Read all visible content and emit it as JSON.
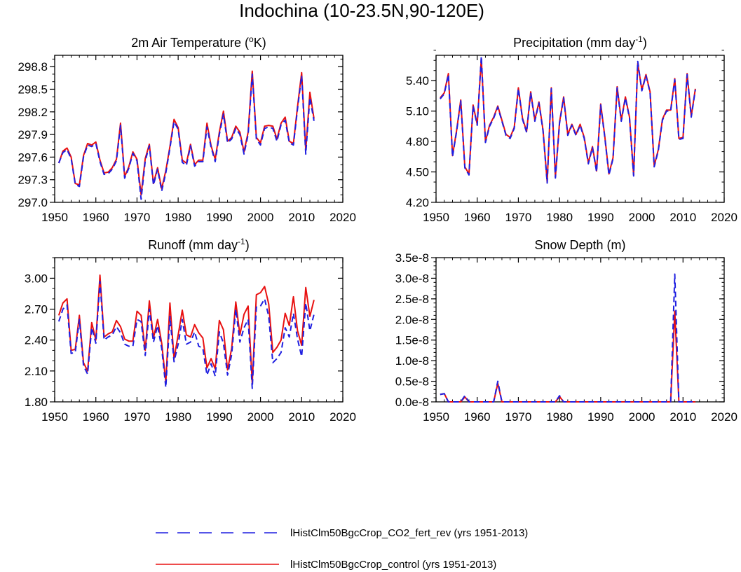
{
  "figure": {
    "title": "Indochina (10-23.5N,90-120E)"
  },
  "colors": {
    "rev": "#1f1fe0",
    "control": "#e81010",
    "axis": "#000000"
  },
  "legend": {
    "items": [
      {
        "label": "lHistClm50BgcCrop_CO2_fert_rev (yrs 1951-2013)",
        "style": "dashed",
        "color": "#1f1fe0"
      },
      {
        "label": "lHistClm50BgcCrop_control (yrs 1951-2013)",
        "style": "solid",
        "color": "#e81010"
      }
    ]
  },
  "chart_data": [
    {
      "type": "line",
      "title": "2m Air Temperature (°K)",
      "title_parts": {
        "pre": "2m Air Temperature (",
        "sup": "o",
        "post": "K)"
      },
      "xlim": [
        1950,
        2020
      ],
      "xticks": [
        1950,
        1960,
        1970,
        1980,
        1990,
        2000,
        2010,
        2020
      ],
      "xtick_labels": [
        "1950",
        "1960",
        "1970",
        "1980",
        "1990",
        "2000",
        "2010",
        "2020"
      ],
      "ylim": [
        297.0,
        298.95
      ],
      "yticks": [
        297.0,
        297.3,
        297.6,
        297.9,
        298.2,
        298.5,
        298.8
      ],
      "ytick_labels": [
        "297.0",
        "297.3",
        "297.6",
        "297.9",
        "298.2",
        "298.5",
        "298.8"
      ],
      "yminor": 0.1,
      "x_start": 1951,
      "series": [
        {
          "name": "lHistClm50BgcCrop_CO2_fert_rev (yrs 1951-2013)",
          "style": "dashed",
          "color": "#1f1fe0",
          "values": [
            297.52,
            297.66,
            297.7,
            297.58,
            297.24,
            297.21,
            297.6,
            297.76,
            297.74,
            297.78,
            297.54,
            297.37,
            297.38,
            297.44,
            297.55,
            298.02,
            297.32,
            297.45,
            297.65,
            297.55,
            297.04,
            297.55,
            297.75,
            297.23,
            297.44,
            297.15,
            297.39,
            297.72,
            298.07,
            297.97,
            297.53,
            297.49,
            297.75,
            297.48,
            297.54,
            297.54,
            298.0,
            297.73,
            297.54,
            297.9,
            298.17,
            297.79,
            297.84,
            297.98,
            297.9,
            297.64,
            297.9,
            298.7,
            297.84,
            297.76,
            297.98,
            298.0,
            297.98,
            297.81,
            298.03,
            298.09,
            297.79,
            297.76,
            298.24,
            298.68,
            297.64,
            298.39,
            298.08
          ]
        },
        {
          "name": "lHistClm50BgcCrop_control (yrs 1951-2013)",
          "style": "solid",
          "color": "#e81010",
          "values": [
            297.52,
            297.68,
            297.72,
            297.6,
            297.25,
            297.23,
            297.62,
            297.78,
            297.76,
            297.8,
            297.56,
            297.39,
            297.4,
            297.46,
            297.57,
            298.05,
            297.34,
            297.47,
            297.67,
            297.57,
            297.1,
            297.58,
            297.77,
            297.25,
            297.46,
            297.18,
            297.42,
            297.74,
            298.1,
            297.99,
            297.56,
            297.52,
            297.77,
            297.5,
            297.56,
            297.56,
            298.05,
            297.75,
            297.57,
            297.93,
            298.21,
            297.81,
            297.86,
            298.01,
            297.93,
            297.67,
            297.93,
            298.74,
            297.86,
            297.79,
            298.01,
            298.02,
            298.01,
            297.84,
            298.05,
            298.13,
            297.81,
            297.78,
            298.27,
            298.72,
            297.69,
            298.46,
            298.11
          ]
        }
      ]
    },
    {
      "type": "line",
      "title": "Precipitation (mm day-1)",
      "title_parts": {
        "pre": "Precipitation (mm day",
        "sup": "-1",
        "post": ")"
      },
      "xlim": [
        1950,
        2020
      ],
      "xticks": [
        1950,
        1960,
        1970,
        1980,
        1990,
        2000,
        2010,
        2020
      ],
      "xtick_labels": [
        "1950",
        "1960",
        "1970",
        "1980",
        "1990",
        "2000",
        "2010",
        "2020"
      ],
      "ylim": [
        4.2,
        5.65
      ],
      "yticks": [
        4.2,
        4.5,
        4.8,
        5.1,
        5.4
      ],
      "ytick_labels": [
        "4.20",
        "4.50",
        "4.80",
        "5.10",
        "5.40"
      ],
      "yminor": 0.1,
      "x_start": 1951,
      "series": [
        {
          "name": "lHistClm50BgcCrop_CO2_fert_rev (yrs 1951-2013)",
          "style": "dashed",
          "color": "#1f1fe0",
          "values": [
            5.22,
            5.27,
            5.46,
            4.65,
            4.9,
            5.2,
            4.54,
            4.47,
            5.15,
            4.96,
            5.64,
            4.79,
            4.95,
            5.03,
            5.14,
            5.0,
            4.86,
            4.83,
            4.93,
            5.32,
            5.02,
            4.89,
            5.28,
            5.0,
            5.18,
            4.9,
            4.39,
            5.32,
            4.44,
            4.98,
            5.23,
            4.86,
            4.96,
            4.86,
            4.96,
            4.83,
            4.58,
            4.74,
            4.5,
            5.16,
            4.84,
            4.47,
            4.63,
            5.33,
            5.0,
            5.23,
            5.03,
            4.46,
            5.59,
            5.3,
            5.45,
            5.28,
            4.55,
            4.71,
            5.01,
            5.1,
            5.1,
            5.41,
            4.82,
            4.83,
            5.46,
            5.04,
            5.31
          ]
        },
        {
          "name": "lHistClm50BgcCrop_control (yrs 1951-2013)",
          "style": "solid",
          "color": "#e81010",
          "values": [
            5.23,
            5.28,
            5.47,
            4.66,
            4.91,
            5.21,
            4.55,
            4.48,
            5.16,
            4.97,
            5.62,
            4.8,
            4.96,
            5.04,
            5.15,
            5.01,
            4.87,
            4.84,
            4.94,
            5.33,
            5.03,
            4.9,
            5.29,
            5.01,
            5.19,
            4.91,
            4.4,
            5.33,
            4.45,
            4.99,
            5.24,
            4.87,
            4.97,
            4.87,
            4.97,
            4.84,
            4.59,
            4.75,
            4.51,
            5.17,
            4.85,
            4.48,
            4.64,
            5.34,
            5.01,
            5.24,
            5.04,
            4.47,
            5.57,
            5.31,
            5.46,
            5.29,
            4.56,
            4.72,
            5.02,
            5.11,
            5.11,
            5.42,
            4.83,
            4.84,
            5.47,
            5.05,
            5.32
          ]
        }
      ]
    },
    {
      "type": "line",
      "title": "Runoff (mm day-1)",
      "title_parts": {
        "pre": "Runoff (mm day",
        "sup": "-1",
        "post": ")"
      },
      "xlim": [
        1950,
        2020
      ],
      "xticks": [
        1950,
        1960,
        1970,
        1980,
        1990,
        2000,
        2010,
        2020
      ],
      "xtick_labels": [
        "1950",
        "1960",
        "1970",
        "1980",
        "1990",
        "2000",
        "2010",
        "2020"
      ],
      "ylim": [
        1.8,
        3.2
      ],
      "yticks": [
        1.8,
        2.1,
        2.4,
        2.7,
        3.0
      ],
      "ytick_labels": [
        "1.80",
        "2.10",
        "2.40",
        "2.70",
        "3.00"
      ],
      "yminor": 0.1,
      "x_start": 1951,
      "series": [
        {
          "name": "lHistClm50BgcCrop_CO2_fert_rev (yrs 1951-2013)",
          "style": "dashed",
          "color": "#1f1fe0",
          "values": [
            2.58,
            2.7,
            2.74,
            2.27,
            2.28,
            2.6,
            2.15,
            2.07,
            2.52,
            2.37,
            2.97,
            2.4,
            2.43,
            2.45,
            2.53,
            2.47,
            2.36,
            2.34,
            2.34,
            2.6,
            2.58,
            2.25,
            2.7,
            2.38,
            2.54,
            2.32,
            1.94,
            2.63,
            2.19,
            2.36,
            2.6,
            2.36,
            2.38,
            2.48,
            2.34,
            2.32,
            2.06,
            2.17,
            2.05,
            2.48,
            2.37,
            2.06,
            2.26,
            2.7,
            2.38,
            2.52,
            2.6,
            1.93,
            2.72,
            2.73,
            2.8,
            2.63,
            2.18,
            2.22,
            2.28,
            2.52,
            2.43,
            2.66,
            2.41,
            2.24,
            2.76,
            2.49,
            2.65
          ]
        },
        {
          "name": "lHistClm50BgcCrop_control (yrs 1951-2013)",
          "style": "solid",
          "color": "#e81010",
          "values": [
            2.64,
            2.76,
            2.8,
            2.3,
            2.31,
            2.64,
            2.18,
            2.1,
            2.57,
            2.4,
            3.03,
            2.43,
            2.46,
            2.48,
            2.59,
            2.53,
            2.41,
            2.39,
            2.39,
            2.68,
            2.64,
            2.3,
            2.78,
            2.42,
            2.6,
            2.37,
            1.99,
            2.76,
            2.22,
            2.45,
            2.69,
            2.45,
            2.43,
            2.55,
            2.47,
            2.42,
            2.13,
            2.22,
            2.12,
            2.59,
            2.5,
            2.11,
            2.32,
            2.77,
            2.45,
            2.65,
            2.73,
            1.98,
            2.84,
            2.86,
            2.92,
            2.75,
            2.28,
            2.33,
            2.4,
            2.66,
            2.54,
            2.82,
            2.49,
            2.35,
            2.91,
            2.63,
            2.79
          ]
        }
      ]
    },
    {
      "type": "line",
      "title": "Snow Depth (m)",
      "title_parts": {
        "pre": "Snow Depth (m)",
        "sup": "",
        "post": ""
      },
      "xlim": [
        1950,
        2020
      ],
      "xticks": [
        1950,
        1960,
        1970,
        1980,
        1990,
        2000,
        2010,
        2020
      ],
      "xtick_labels": [
        "1950",
        "1960",
        "1970",
        "1980",
        "1990",
        "2000",
        "2010",
        "2020"
      ],
      "ylim": [
        0.0,
        3.5e-08
      ],
      "yticks": [
        0.0,
        5e-09,
        1e-08,
        1.5e-08,
        2e-08,
        2.5e-08,
        3e-08,
        3.5e-08
      ],
      "ytick_labels": [
        "0.0e-8",
        "0.5e-8",
        "1.0e-8",
        "1.5e-8",
        "2.0e-8",
        "2.5e-8",
        "3.0e-8",
        "3.5e-8"
      ],
      "yminor": 1e-09,
      "x_start": 1951,
      "series": [
        {
          "name": "lHistClm50BgcCrop_CO2_fert_rev (yrs 1951-2013)",
          "style": "dashed",
          "color": "#1f1fe0",
          "values": [
            1.8e-09,
            2e-09,
            0,
            0,
            0,
            0,
            1.5e-09,
            0,
            0,
            0,
            0,
            0,
            0,
            0,
            5e-09,
            0,
            0,
            0,
            0,
            0,
            0,
            0,
            0,
            0,
            0,
            0,
            0,
            0,
            0,
            1.5e-09,
            0,
            0,
            0,
            0,
            0,
            0,
            0,
            0,
            0,
            0,
            0,
            0,
            0,
            0,
            0,
            0,
            0,
            0,
            0,
            0,
            0,
            0,
            0,
            0,
            0,
            0,
            0,
            3.1e-08,
            0,
            0,
            0,
            0,
            0
          ]
        },
        {
          "name": "lHistClm50BgcCrop_control (yrs 1951-2013)",
          "style": "solid",
          "color": "#e81010",
          "values": [
            1.8e-09,
            2e-09,
            0,
            0,
            0,
            0,
            1.2e-09,
            0,
            0,
            0,
            0,
            0,
            0,
            0,
            4.5e-09,
            0,
            0,
            0,
            0,
            0,
            0,
            0,
            0,
            0,
            0,
            0,
            0,
            0,
            0,
            1.3e-09,
            0,
            0,
            0,
            0,
            0,
            0,
            0,
            0,
            0,
            0,
            0,
            0,
            0,
            0,
            0,
            0,
            0,
            0,
            0,
            0,
            0,
            0,
            0,
            0,
            0,
            0,
            0,
            2.2e-08,
            0,
            0,
            0,
            0,
            0
          ]
        }
      ]
    }
  ]
}
